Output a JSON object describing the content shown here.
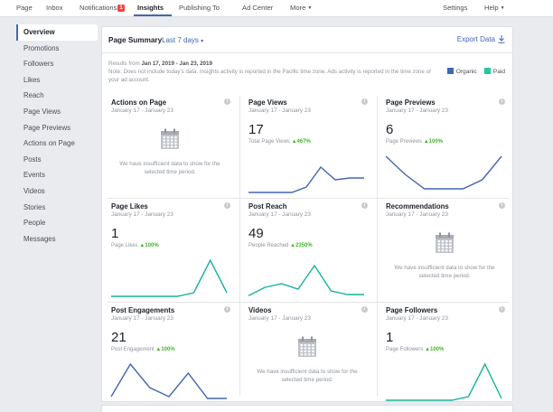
{
  "topnav": {
    "items": [
      {
        "label": "Page"
      },
      {
        "label": "Inbox"
      },
      {
        "label": "Notifications",
        "badge": "1"
      },
      {
        "label": "Insights"
      },
      {
        "label": "Publishing To"
      },
      {
        "label": "Ad Center"
      },
      {
        "label": "More"
      },
      {
        "label": "Settings"
      },
      {
        "label": "Help"
      }
    ]
  },
  "sidebar": {
    "items": [
      {
        "label": "Overview"
      },
      {
        "label": "Promotions"
      },
      {
        "label": "Followers"
      },
      {
        "label": "Likes"
      },
      {
        "label": "Reach"
      },
      {
        "label": "Page Views"
      },
      {
        "label": "Page Previews"
      },
      {
        "label": "Actions on Page"
      },
      {
        "label": "Posts"
      },
      {
        "label": "Events"
      },
      {
        "label": "Videos"
      },
      {
        "label": "Stories"
      },
      {
        "label": "People"
      },
      {
        "label": "Messages"
      }
    ]
  },
  "summary": {
    "title": "Page Summary",
    "range": "Last 7 days",
    "export_label": "Export Data",
    "results_prefix": "Results from ",
    "results_dates": "Jan 17, 2019 - Jan 23, 2019",
    "results_note": "Note: Does not include today's data. Insights activity is reported in the Pacific time zone. Ads activity is reported in the time zone of your ad account.",
    "legend": [
      {
        "label": "Organic",
        "color": "#4267b2"
      },
      {
        "label": "Paid",
        "color": "#20c8a0"
      }
    ]
  },
  "colors": {
    "accent": "#4267b2",
    "positive": "#42b72a",
    "teal": "#16b39a"
  },
  "no_data_text": "We have insufficient data to show for the selected time period.",
  "cards": [
    {
      "title": "Actions on Page",
      "date": "January 17 - January 23",
      "no_data": true
    },
    {
      "title": "Page Views",
      "date": "January 17 - January 23",
      "value": "17",
      "label": "Total Page Views",
      "change": "467%",
      "series_color": "#4267b2",
      "spark": [
        0,
        0,
        0,
        0,
        0.15,
        0.7,
        0.35,
        0.4,
        0.4
      ]
    },
    {
      "title": "Page Previews",
      "date": "January 17 - January 23",
      "value": "6",
      "label": "Page Previews",
      "change": "100%",
      "series_color": "#4267b2",
      "spark": [
        1,
        0.5,
        0.1,
        0.1,
        0.1,
        0.35,
        1.0
      ]
    },
    {
      "title": "Page Likes",
      "date": "January 17 - January 23",
      "value": "1",
      "label": "Page Likes",
      "change": "100%",
      "series_color": "#16b39a",
      "spark": [
        0,
        0,
        0,
        0,
        0,
        0.1,
        1.0,
        0.1
      ]
    },
    {
      "title": "Post Reach",
      "date": "January 17 - January 23",
      "value": "49",
      "label": "People Reached",
      "change": "2350%",
      "series_color": "#16b39a",
      "spark": [
        0.02,
        0.25,
        0.35,
        0.2,
        0.85,
        0.15,
        0.05,
        0.05
      ]
    },
    {
      "title": "Recommendations",
      "date": "January 17 - January 23",
      "no_data": true
    },
    {
      "title": "Post Engagements",
      "date": "January 17 - January 23",
      "value": "21",
      "label": "Post Engagement",
      "change": "100%",
      "series_color": "#4267b2",
      "spark": [
        0.1,
        1.0,
        0.35,
        0.1,
        0.75,
        0.05,
        0.05
      ]
    },
    {
      "title": "Videos",
      "date": "January 17 - January 23",
      "no_data": true
    },
    {
      "title": "Page Followers",
      "date": "January 17 - January 23",
      "value": "1",
      "label": "Page Followers",
      "change": "100%",
      "series_color": "#16b39a",
      "spark": [
        0,
        0,
        0,
        0,
        0,
        0.1,
        1.0,
        0.05
      ]
    }
  ]
}
